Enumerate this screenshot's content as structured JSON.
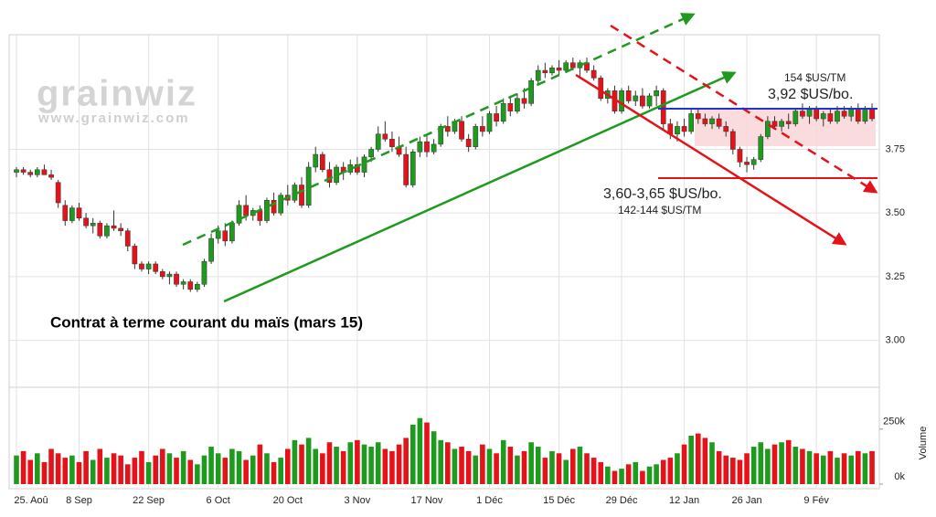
{
  "chart_data": {
    "type": "candlestick",
    "title": "Contrat à terme courant du maïs (mars 15)",
    "watermark": "grainwiz",
    "watermark_url": "www.grainwiz.com",
    "annotations": [
      "154 $US/TM",
      "3,92 $US/bo.",
      "3,60-3,65 $US/bo.",
      "142-144 $US/TM"
    ],
    "volume_label": "Volume",
    "up_color": "#1e9a1e",
    "down_color": "#e5121a",
    "grid": true,
    "ylim": [
      2.83,
      4.2
    ],
    "yticks": [
      {
        "value": 3.0,
        "label": "3.00"
      },
      {
        "value": 3.25,
        "label": "3.25"
      },
      {
        "value": 3.5,
        "label": "3.50"
      },
      {
        "value": 3.75,
        "label": "3.75"
      }
    ],
    "y2lim": [
      0,
      440000
    ],
    "y2ticks": [
      {
        "value": 250000,
        "label": "250k"
      },
      {
        "value": 0,
        "label": "0k"
      }
    ],
    "categories": [
      "25. Aoû",
      null,
      null,
      null,
      null,
      null,
      null,
      null,
      null,
      "8 Sep",
      null,
      null,
      null,
      null,
      null,
      null,
      null,
      null,
      null,
      "22 Sep",
      null,
      null,
      null,
      null,
      null,
      null,
      null,
      null,
      null,
      "6 Oct",
      null,
      null,
      null,
      null,
      null,
      null,
      null,
      null,
      null,
      "20 Oct",
      null,
      null,
      null,
      null,
      null,
      null,
      null,
      null,
      null,
      "3 Nov",
      null,
      null,
      null,
      null,
      null,
      null,
      null,
      null,
      null,
      "17 Nov",
      null,
      null,
      null,
      null,
      null,
      null,
      null,
      null,
      "1 Déc",
      null,
      null,
      null,
      null,
      null,
      null,
      null,
      null,
      null,
      "15 Déc",
      null,
      null,
      null,
      null,
      null,
      null,
      null,
      null,
      "29 Déc",
      null,
      null,
      null,
      null,
      null,
      null,
      null,
      null,
      "12 Jan",
      null,
      null,
      null,
      null,
      null,
      null,
      null,
      null,
      "26 Jan",
      null,
      null,
      null,
      null,
      null,
      null,
      null,
      null,
      null,
      "9 Fév",
      null,
      null,
      null,
      null,
      null,
      null,
      null,
      null
    ],
    "ohlc": [
      [
        3.66,
        3.68,
        3.64,
        3.67
      ],
      [
        3.67,
        3.68,
        3.65,
        3.66
      ],
      [
        3.66,
        3.67,
        3.64,
        3.65
      ],
      [
        3.65,
        3.68,
        3.64,
        3.67
      ],
      [
        3.67,
        3.69,
        3.65,
        3.65
      ],
      [
        3.65,
        3.67,
        3.63,
        3.64
      ],
      [
        3.62,
        3.63,
        3.52,
        3.54
      ],
      [
        3.53,
        3.55,
        3.45,
        3.47
      ],
      [
        3.47,
        3.53,
        3.46,
        3.52
      ],
      [
        3.52,
        3.54,
        3.47,
        3.48
      ],
      [
        3.48,
        3.5,
        3.44,
        3.45
      ],
      [
        3.45,
        3.48,
        3.42,
        3.46
      ],
      [
        3.46,
        3.47,
        3.4,
        3.41
      ],
      [
        3.41,
        3.46,
        3.4,
        3.45
      ],
      [
        3.45,
        3.51,
        3.43,
        3.44
      ],
      [
        3.44,
        3.46,
        3.41,
        3.43
      ],
      [
        3.43,
        3.44,
        3.35,
        3.37
      ],
      [
        3.37,
        3.38,
        3.28,
        3.3
      ],
      [
        3.3,
        3.31,
        3.27,
        3.28
      ],
      [
        3.28,
        3.31,
        3.26,
        3.3
      ],
      [
        3.3,
        3.31,
        3.26,
        3.27
      ],
      [
        3.27,
        3.28,
        3.24,
        3.25
      ],
      [
        3.25,
        3.27,
        3.22,
        3.26
      ],
      [
        3.26,
        3.27,
        3.21,
        3.22
      ],
      [
        3.22,
        3.24,
        3.2,
        3.23
      ],
      [
        3.23,
        3.24,
        3.19,
        3.2
      ],
      [
        3.2,
        3.23,
        3.19,
        3.22
      ],
      [
        3.22,
        3.32,
        3.21,
        3.31
      ],
      [
        3.31,
        3.42,
        3.3,
        3.4
      ],
      [
        3.4,
        3.45,
        3.38,
        3.43
      ],
      [
        3.43,
        3.46,
        3.37,
        3.39
      ],
      [
        3.39,
        3.47,
        3.38,
        3.46
      ],
      [
        3.46,
        3.55,
        3.45,
        3.53
      ],
      [
        3.53,
        3.57,
        3.47,
        3.49
      ],
      [
        3.49,
        3.52,
        3.47,
        3.51
      ],
      [
        3.51,
        3.53,
        3.45,
        3.47
      ],
      [
        3.47,
        3.56,
        3.46,
        3.55
      ],
      [
        3.55,
        3.58,
        3.49,
        3.5
      ],
      [
        3.5,
        3.58,
        3.49,
        3.57
      ],
      [
        3.57,
        3.61,
        3.53,
        3.55
      ],
      [
        3.55,
        3.62,
        3.54,
        3.61
      ],
      [
        3.61,
        3.64,
        3.52,
        3.53
      ],
      [
        3.53,
        3.7,
        3.52,
        3.68
      ],
      [
        3.68,
        3.76,
        3.66,
        3.73
      ],
      [
        3.73,
        3.74,
        3.66,
        3.67
      ],
      [
        3.67,
        3.7,
        3.6,
        3.62
      ],
      [
        3.62,
        3.69,
        3.61,
        3.68
      ],
      [
        3.68,
        3.7,
        3.63,
        3.66
      ],
      [
        3.66,
        3.71,
        3.65,
        3.69
      ],
      [
        3.69,
        3.72,
        3.65,
        3.66
      ],
      [
        3.66,
        3.73,
        3.64,
        3.72
      ],
      [
        3.72,
        3.76,
        3.7,
        3.75
      ],
      [
        3.75,
        3.84,
        3.74,
        3.81
      ],
      [
        3.81,
        3.86,
        3.78,
        3.79
      ],
      [
        3.79,
        3.82,
        3.74,
        3.76
      ],
      [
        3.76,
        3.8,
        3.72,
        3.73
      ],
      [
        3.73,
        3.76,
        3.6,
        3.61
      ],
      [
        3.61,
        3.75,
        3.6,
        3.74
      ],
      [
        3.74,
        3.8,
        3.72,
        3.78
      ],
      [
        3.78,
        3.81,
        3.72,
        3.74
      ],
      [
        3.74,
        3.79,
        3.73,
        3.77
      ],
      [
        3.77,
        3.85,
        3.76,
        3.84
      ],
      [
        3.84,
        3.88,
        3.8,
        3.82
      ],
      [
        3.82,
        3.87,
        3.81,
        3.86
      ],
      [
        3.86,
        3.88,
        3.78,
        3.79
      ],
      [
        3.79,
        3.81,
        3.74,
        3.76
      ],
      [
        3.76,
        3.85,
        3.75,
        3.84
      ],
      [
        3.84,
        3.88,
        3.8,
        3.82
      ],
      [
        3.82,
        3.9,
        3.81,
        3.89
      ],
      [
        3.89,
        3.92,
        3.84,
        3.86
      ],
      [
        3.86,
        3.95,
        3.85,
        3.93
      ],
      [
        3.93,
        3.96,
        3.88,
        3.9
      ],
      [
        3.9,
        3.97,
        3.89,
        3.95
      ],
      [
        3.95,
        3.99,
        3.91,
        3.93
      ],
      [
        3.93,
        4.03,
        3.92,
        4.02
      ],
      [
        4.02,
        4.08,
        4.0,
        4.06
      ],
      [
        4.06,
        4.09,
        4.03,
        4.05
      ],
      [
        4.05,
        4.08,
        4.04,
        4.07
      ],
      [
        4.07,
        4.1,
        4.04,
        4.06
      ],
      [
        4.06,
        4.1,
        4.05,
        4.09
      ],
      [
        4.09,
        4.11,
        4.06,
        4.07
      ],
      [
        4.07,
        4.1,
        4.03,
        4.09
      ],
      [
        4.09,
        4.11,
        4.05,
        4.06
      ],
      [
        4.06,
        4.08,
        4.02,
        4.03
      ],
      [
        4.03,
        4.04,
        3.94,
        3.95
      ],
      [
        3.95,
        3.99,
        3.93,
        3.98
      ],
      [
        3.98,
        4.0,
        3.89,
        3.9
      ],
      [
        3.9,
        3.99,
        3.89,
        3.98
      ],
      [
        3.98,
        4.0,
        3.93,
        3.94
      ],
      [
        3.94,
        3.98,
        3.92,
        3.96
      ],
      [
        3.96,
        3.99,
        3.91,
        3.92
      ],
      [
        3.92,
        3.97,
        3.91,
        3.96
      ],
      [
        3.96,
        4.0,
        3.92,
        3.98
      ],
      [
        3.98,
        3.99,
        3.83,
        3.85
      ],
      [
        3.85,
        3.87,
        3.79,
        3.81
      ],
      [
        3.81,
        3.86,
        3.78,
        3.84
      ],
      [
        3.84,
        3.87,
        3.8,
        3.82
      ],
      [
        3.82,
        3.91,
        3.81,
        3.89
      ],
      [
        3.89,
        3.91,
        3.85,
        3.87
      ],
      [
        3.87,
        3.89,
        3.84,
        3.85
      ],
      [
        3.85,
        3.88,
        3.83,
        3.87
      ],
      [
        3.87,
        3.89,
        3.83,
        3.84
      ],
      [
        3.84,
        3.86,
        3.8,
        3.82
      ],
      [
        3.82,
        3.83,
        3.73,
        3.75
      ],
      [
        3.75,
        3.76,
        3.68,
        3.7
      ],
      [
        3.7,
        3.72,
        3.66,
        3.69
      ],
      [
        3.69,
        3.72,
        3.67,
        3.71
      ],
      [
        3.71,
        3.81,
        3.7,
        3.8
      ],
      [
        3.8,
        3.88,
        3.79,
        3.86
      ],
      [
        3.86,
        3.88,
        3.83,
        3.84
      ],
      [
        3.84,
        3.87,
        3.82,
        3.86
      ],
      [
        3.86,
        3.89,
        3.83,
        3.85
      ],
      [
        3.85,
        3.91,
        3.84,
        3.9
      ],
      [
        3.9,
        3.93,
        3.87,
        3.88
      ],
      [
        3.88,
        3.92,
        3.85,
        3.91
      ],
      [
        3.91,
        3.92,
        3.86,
        3.87
      ],
      [
        3.87,
        3.9,
        3.84,
        3.89
      ],
      [
        3.89,
        3.91,
        3.85,
        3.86
      ],
      [
        3.86,
        3.92,
        3.85,
        3.9
      ],
      [
        3.9,
        3.92,
        3.87,
        3.88
      ],
      [
        3.88,
        3.92,
        3.86,
        3.91
      ],
      [
        3.91,
        3.93,
        3.85,
        3.86
      ],
      [
        3.86,
        3.92,
        3.85,
        3.91
      ],
      [
        3.91,
        3.93,
        3.86,
        3.87
      ]
    ],
    "volume": [
      130000,
      150000,
      110000,
      140000,
      100000,
      160000,
      140000,
      120000,
      130000,
      100000,
      150000,
      110000,
      160000,
      120000,
      140000,
      130000,
      90000,
      120000,
      150000,
      100000,
      130000,
      160000,
      140000,
      120000,
      150000,
      110000,
      90000,
      130000,
      170000,
      140000,
      120000,
      160000,
      150000,
      110000,
      130000,
      180000,
      140000,
      100000,
      120000,
      160000,
      200000,
      180000,
      210000,
      160000,
      140000,
      190000,
      170000,
      150000,
      190000,
      200000,
      180000,
      170000,
      190000,
      160000,
      150000,
      180000,
      210000,
      270000,
      300000,
      280000,
      240000,
      200000,
      190000,
      160000,
      170000,
      150000,
      130000,
      180000,
      160000,
      140000,
      200000,
      170000,
      130000,
      150000,
      190000,
      170000,
      120000,
      150000,
      140000,
      110000,
      160000,
      170000,
      140000,
      120000,
      100000,
      80000,
      60000,
      70000,
      90000,
      100000,
      60000,
      80000,
      90000,
      110000,
      120000,
      140000,
      180000,
      220000,
      230000,
      210000,
      190000,
      150000,
      130000,
      120000,
      110000,
      140000,
      170000,
      190000,
      160000,
      180000,
      190000,
      200000,
      170000,
      160000,
      150000,
      140000,
      130000,
      150000,
      120000,
      140000,
      130000,
      150000,
      140000,
      150000
    ]
  }
}
